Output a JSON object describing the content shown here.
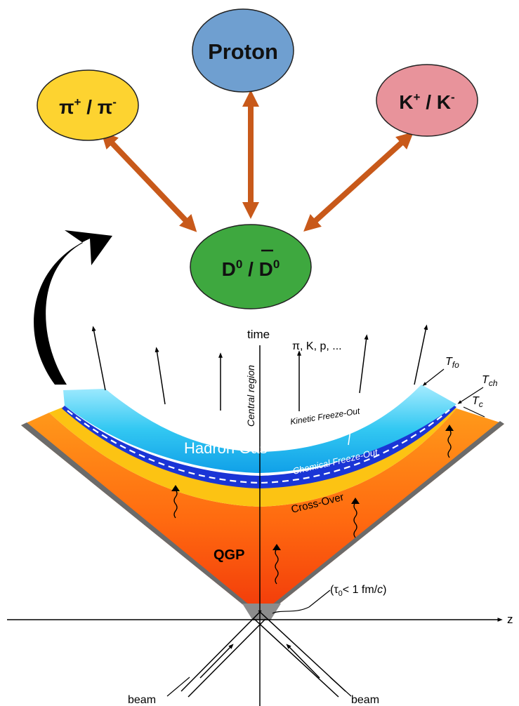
{
  "nodes": {
    "proton": {
      "label": "Proton",
      "color": "#6f9fd0"
    },
    "pion": {
      "base": "π",
      "sup1": "+",
      "sep": " / ",
      "base2": "π",
      "sup2": "-",
      "color": "#fdd330"
    },
    "kaon": {
      "base": "K",
      "sup1": "+",
      "sep": " / ",
      "base2": "K",
      "sup2": "-",
      "color": "#e8939b"
    },
    "dmeson": {
      "base": "D",
      "sup1": "0",
      "sep": " / ",
      "base2": "D",
      "sup2": "0",
      "color": "#3ea83f"
    }
  },
  "arrow_color": "#c8591a",
  "spacetime": {
    "time_label": "time",
    "z_label": "z",
    "central_region": "Central region",
    "hadrons": "π, K, p, ...",
    "t_fo": {
      "T": "T",
      "sub": "fo"
    },
    "t_ch": {
      "T": "T",
      "sub": "ch"
    },
    "t_c": {
      "T": "T",
      "sub": "c"
    },
    "kinetic": "Kinetic Freeze-Out",
    "chemical": "Chemical Freeze-Out",
    "hadron_gas": "Hadron Gas",
    "crossover": "Cross-Over",
    "qgp": "QGP",
    "tau": {
      "open": "(τ",
      "sub": "0",
      "rest": "< 1 fm/",
      "c": "c",
      "close": ")"
    },
    "beam_left": "beam",
    "beam_right": "beam"
  }
}
